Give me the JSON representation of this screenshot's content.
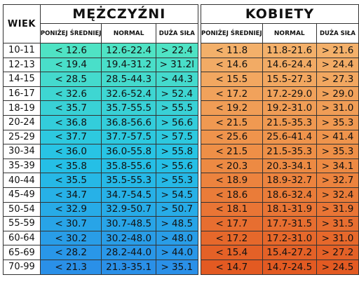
{
  "header": {
    "age_label": "WIEK",
    "men_label": "MĘŻCZYŹNI",
    "women_label": "KOBIETY",
    "columns": [
      "PONIŻEJ ŚREDNIEJ",
      "NORMAL",
      "DUŻA SIŁA"
    ]
  },
  "colors": {
    "men_gradient": [
      "#4fe3c4",
      "#25c2e6",
      "#2a90e8"
    ],
    "women_gradient": [
      "#f3b06a",
      "#ee8d45",
      "#e35a22"
    ]
  },
  "rows": [
    {
      "age": "10-11",
      "men": [
        "< 12.6",
        "12.6-22.4",
        "> 22.4"
      ],
      "women": [
        "< 11.8",
        "11.8-21.6",
        "> 21.6"
      ]
    },
    {
      "age": "12-13",
      "men": [
        "< 19.4",
        "19.4-31.2",
        "> 31.2l"
      ],
      "women": [
        "< 14.6",
        "14.6-24.4",
        "> 24.4"
      ]
    },
    {
      "age": "14-15",
      "men": [
        "< 28.5",
        "28.5-44.3",
        "> 44.3"
      ],
      "women": [
        "< 15.5",
        "15.5-27.3",
        "> 27.3"
      ]
    },
    {
      "age": "16-17",
      "men": [
        "< 32.6",
        "32.6-52.4",
        "> 52.4"
      ],
      "women": [
        "< 17.2",
        "17.2-29.0",
        "> 29.0"
      ]
    },
    {
      "age": "18-19",
      "men": [
        "< 35.7",
        "35.7-55.5",
        "> 55.5"
      ],
      "women": [
        "< 19.2",
        "19.2-31.0",
        "> 31.0"
      ]
    },
    {
      "age": "20-24",
      "men": [
        "< 36.8",
        "36.8-56.6",
        "> 56.6"
      ],
      "women": [
        "< 21.5",
        "21.5-35.3",
        "> 35.3"
      ]
    },
    {
      "age": "25-29",
      "men": [
        "< 37.7",
        "37.7-57.5",
        "> 57.5"
      ],
      "women": [
        "< 25.6",
        "25.6-41.4",
        "> 41.4"
      ]
    },
    {
      "age": "30-34",
      "men": [
        "< 36.0",
        "36.0-55.8",
        "> 55.8"
      ],
      "women": [
        "< 21.5",
        "21.5-35.3",
        "> 35.3"
      ]
    },
    {
      "age": "35-39",
      "men": [
        "< 35.8",
        "35.8-55.6",
        "> 55.6"
      ],
      "women": [
        "< 20.3",
        "20.3-34.1",
        "> 34.1"
      ]
    },
    {
      "age": "40-44",
      "men": [
        "< 35.5",
        "35.5-55.3",
        "> 55.3"
      ],
      "women": [
        "< 18.9",
        "18.9-32.7",
        "> 32.7"
      ]
    },
    {
      "age": "45-49",
      "men": [
        "< 34.7",
        "34.7-54.5",
        "> 54.5"
      ],
      "women": [
        "< 18.6",
        "18.6-32.4",
        "> 32.4"
      ]
    },
    {
      "age": "50-54",
      "men": [
        "< 32.9",
        "32.9-50.7",
        "> 50.7"
      ],
      "women": [
        "< 18.1",
        "18.1-31.9",
        "> 31.9"
      ]
    },
    {
      "age": "55-59",
      "men": [
        "< 30.7",
        "30.7-48.5",
        "> 48.5"
      ],
      "women": [
        "< 17.7",
        "17.7-31.5",
        "> 31.5"
      ]
    },
    {
      "age": "60-64",
      "men": [
        "< 30.2",
        "30.2-48.0",
        "> 48.0"
      ],
      "women": [
        "< 17.2",
        "17.2-31.0",
        "> 31.0"
      ]
    },
    {
      "age": "65-69",
      "men": [
        "< 28.2",
        "28.2-44.0",
        "> 44.0"
      ],
      "women": [
        "< 15.4",
        "15.4-27.2",
        "> 27.2"
      ]
    },
    {
      "age": "70-99",
      "men": [
        "< 21.3",
        "21.3-35.1",
        "> 35.1"
      ],
      "women": [
        "< 14.7",
        "14.7-24.5",
        "> 24.5"
      ]
    }
  ]
}
